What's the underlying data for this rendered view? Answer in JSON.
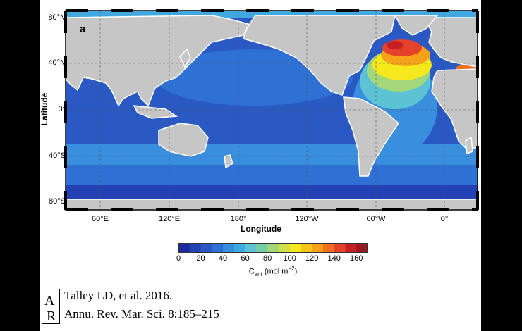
{
  "map": {
    "panel_letter": "a",
    "x_axis_label": "Longitude",
    "y_axis_label": "Latitude",
    "lat_ticks": [
      "80°N",
      "40°N",
      "0°",
      "40°S",
      "80°S"
    ],
    "lon_ticks": [
      "60°E",
      "120°E",
      "180°",
      "120°W",
      "60°W",
      "0°"
    ]
  },
  "colorbar": {
    "ticks": [
      "0",
      "20",
      "40",
      "60",
      "80",
      "100",
      "120",
      "140",
      "160"
    ],
    "label_main": "C",
    "label_sub": "ant",
    "label_unit": " (mol m",
    "label_sup": "−2",
    "label_close": ")",
    "range": [
      0,
      170
    ],
    "colors": [
      "#1b2aa0",
      "#2440b5",
      "#2a58c9",
      "#2e70d4",
      "#3a8ede",
      "#42a9e0",
      "#5cc3d4",
      "#79cfa5",
      "#a4d77a",
      "#d2e04a",
      "#f5e81c",
      "#f7c61a",
      "#f5a11a",
      "#ef7020",
      "#e4422a",
      "#c52025",
      "#9b1a22"
    ]
  },
  "citation": {
    "line1": "Talley LD, et al. 2016.",
    "line2": "Annu. Rev. Mar. Sci. 8:185–215",
    "logo_letters": "AR"
  }
}
